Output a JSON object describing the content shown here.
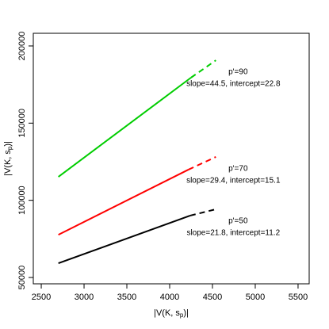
{
  "chart_data": {
    "type": "line",
    "xlabel": [
      "|V(K, s",
      "p",
      ")|"
    ],
    "ylabel": [
      "|V(K, s",
      "p",
      ")|"
    ],
    "xlim": [
      2407,
      5630
    ],
    "ylim": [
      45900,
      208200
    ],
    "xticks": [
      2500,
      3000,
      3500,
      4000,
      4500,
      5000,
      5500
    ],
    "yticks": [
      50000,
      100000,
      150000,
      200000
    ],
    "series": [
      {
        "color": "#00cd00",
        "x": [
          2700,
          4250
        ],
        "values": [
          115200,
          179500
        ],
        "extension_x": [
          4250,
          4540
        ],
        "extension_values": [
          179500,
          190700
        ],
        "annotation": [
          "p'=90",
          "slope=44.5, intercept=22.8"
        ]
      },
      {
        "color": "#ff0000",
        "x": [
          2700,
          4220
        ],
        "values": [
          77700,
          119900
        ],
        "extension_x": [
          4220,
          4540
        ],
        "extension_values": [
          119900,
          128100
        ],
        "annotation": [
          "p'=70",
          "slope=29.4, intercept=15.1"
        ]
      },
      {
        "color": "#000000",
        "x": [
          2700,
          4240
        ],
        "values": [
          59200,
          90100
        ],
        "extension_x": [
          4240,
          4540
        ],
        "extension_values": [
          90100,
          94200
        ],
        "annotation": [
          "p'=50",
          "slope=21.8, intercept=11.2"
        ]
      }
    ]
  }
}
